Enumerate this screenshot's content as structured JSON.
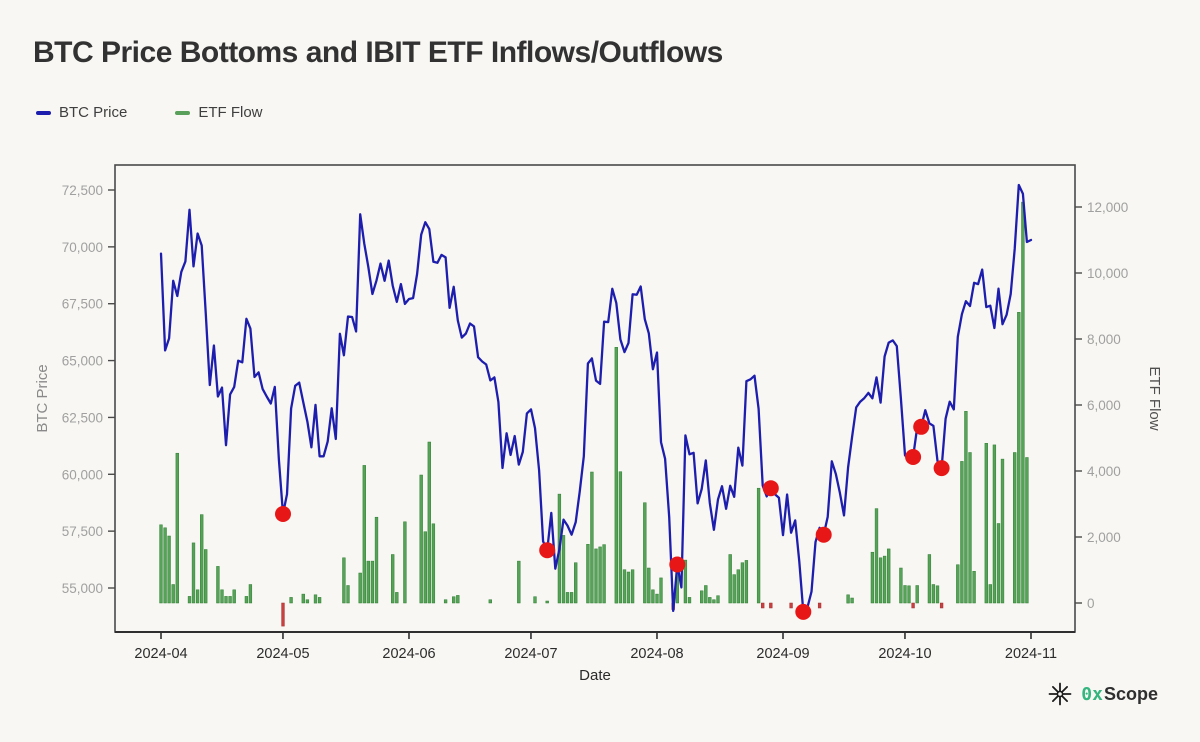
{
  "page": {
    "background": "#f8f7f3"
  },
  "header": {
    "title": "BTC Price Bottoms and IBIT ETF Inflows/Outflows"
  },
  "legend": {
    "items": [
      {
        "label": "BTC Price",
        "color": "#1e1eae"
      },
      {
        "label": "ETF Flow",
        "color": "#5aa05a"
      }
    ]
  },
  "footer": {
    "brand_prefix": "0x",
    "brand_suffix": "Scope",
    "prefix_color": "#35b57f",
    "icon": "eight-point-star"
  },
  "chart_data": {
    "type": "mixed-line-bar",
    "title": "BTC Price Bottoms and IBIT ETF Inflows/Outflows",
    "x_axis": {
      "label": "Date",
      "ticks": [
        {
          "label": "2024-04",
          "date": "2024-04-01"
        },
        {
          "label": "2024-05",
          "date": "2024-05-01"
        },
        {
          "label": "2024-06",
          "date": "2024-06-01"
        },
        {
          "label": "2024-07",
          "date": "2024-07-01"
        },
        {
          "label": "2024-08",
          "date": "2024-08-01"
        },
        {
          "label": "2024-09",
          "date": "2024-09-01"
        },
        {
          "label": "2024-10",
          "date": "2024-10-01"
        },
        {
          "label": "2024-11",
          "date": "2024-11-01"
        }
      ]
    },
    "left_axis": {
      "label": "BTC Price",
      "min": 55000,
      "max": 72500,
      "ticks": [
        {
          "v": 55000,
          "label": "55,000"
        },
        {
          "v": 57500,
          "label": "57,500"
        },
        {
          "v": 60000,
          "label": "60,000"
        },
        {
          "v": 62500,
          "label": "62,500"
        },
        {
          "v": 65000,
          "label": "65,000"
        },
        {
          "v": 67500,
          "label": "67,500"
        },
        {
          "v": 70000,
          "label": "70,000"
        },
        {
          "v": 72500,
          "label": "72,500"
        }
      ]
    },
    "right_axis": {
      "label": "ETF Flow",
      "min": 0,
      "max": 12000,
      "ticks": [
        {
          "v": 0,
          "label": "0"
        },
        {
          "v": 2000,
          "label": "2,000"
        },
        {
          "v": 4000,
          "label": "4,000"
        },
        {
          "v": 6000,
          "label": "6,000"
        },
        {
          "v": 8000,
          "label": "8,000"
        },
        {
          "v": 10000,
          "label": "10,000"
        },
        {
          "v": 12000,
          "label": "12,000"
        }
      ]
    },
    "series": [
      {
        "name": "BTC Price",
        "type": "line",
        "color": "#1e1eae",
        "start_date": "2024-04-01",
        "interval_days": 1,
        "values": [
          69702,
          65446,
          65980,
          68508,
          67837,
          68897,
          69362,
          71631,
          69140,
          70587,
          70060,
          67116,
          63924,
          65661,
          63419,
          63811,
          61277,
          63512,
          63843,
          64994,
          64926,
          66837,
          66407,
          64276,
          64481,
          63755,
          63419,
          63113,
          63841,
          60636,
          58254,
          59123,
          62889,
          63892,
          64031,
          63161,
          62312,
          61187,
          63049,
          60792,
          60793,
          61448,
          62901,
          61552,
          66175,
          65231,
          66940,
          66915,
          66278,
          71430,
          70136,
          69122,
          67929,
          68526,
          69265,
          68507,
          69394,
          68296,
          67578,
          68364,
          67491,
          67706,
          67745,
          68805,
          70537,
          71082,
          70780,
          69344,
          69300,
          69648,
          69536,
          67317,
          68243,
          66766,
          66011,
          66191,
          66632,
          66503,
          65147,
          64960,
          64829,
          64126,
          64261,
          63180,
          60277,
          61804,
          60854,
          61684,
          60427,
          60986,
          62678,
          62851,
          62029,
          60174,
          57050,
          56662,
          58303,
          55849,
          56705,
          58009,
          57742,
          57344,
          57899,
          59231,
          60787,
          64870,
          65097,
          64118,
          63974,
          66710,
          66690,
          68154,
          67532,
          65928,
          65372,
          65777,
          67912,
          67896,
          68255,
          66819,
          66201,
          64619,
          65357,
          61415,
          60680,
          58116,
          53991,
          56034,
          55027,
          61710,
          60880,
          60945,
          58719,
          59354,
          60609,
          58737,
          57560,
          58894,
          59478,
          58483,
          59493,
          59012,
          61175,
          60382,
          64094,
          64178,
          64333,
          62880,
          59504,
          59027,
          59388,
          59119,
          58969,
          57325,
          59112,
          57431,
          57971,
          56160,
          53948,
          54139,
          54841,
          57019,
          57648,
          57343,
          58127,
          60571,
          60005,
          59182,
          58192,
          60308,
          61649,
          62940,
          63193,
          63348,
          63579,
          63339,
          64262,
          63150,
          65181,
          65790,
          65887,
          65635,
          63329,
          60837,
          60632,
          60759,
          62067,
          62089,
          62818,
          62236,
          62131,
          60582,
          60274,
          62445,
          63193,
          62851,
          66046,
          67041,
          67612,
          67399,
          68418,
          68362,
          69001,
          67353,
          67411,
          66432,
          68161,
          66600,
          67014,
          67929,
          69907,
          72720,
          72339,
          70215,
          70300
        ]
      },
      {
        "name": "ETF Flow",
        "type": "bar",
        "color_positive": "#55a356",
        "color_negative": "#c94040",
        "points": [
          [
            "2024-04-01",
            2370
          ],
          [
            "2024-04-02",
            2280
          ],
          [
            "2024-04-03",
            2030
          ],
          [
            "2024-04-04",
            560
          ],
          [
            "2024-04-05",
            4540
          ],
          [
            "2024-04-08",
            200
          ],
          [
            "2024-04-09",
            1820
          ],
          [
            "2024-04-10",
            400
          ],
          [
            "2024-04-11",
            2680
          ],
          [
            "2024-04-12",
            1620
          ],
          [
            "2024-04-15",
            1110
          ],
          [
            "2024-04-16",
            400
          ],
          [
            "2024-04-17",
            200
          ],
          [
            "2024-04-18",
            200
          ],
          [
            "2024-04-19",
            400
          ],
          [
            "2024-04-22",
            200
          ],
          [
            "2024-04-23",
            560
          ],
          [
            "2024-05-01",
            -700
          ],
          [
            "2024-05-03",
            170
          ],
          [
            "2024-05-06",
            270
          ],
          [
            "2024-05-07",
            100
          ],
          [
            "2024-05-09",
            250
          ],
          [
            "2024-05-10",
            170
          ],
          [
            "2024-05-16",
            1370
          ],
          [
            "2024-05-17",
            530
          ],
          [
            "2024-05-20",
            910
          ],
          [
            "2024-05-21",
            4170
          ],
          [
            "2024-05-22",
            1270
          ],
          [
            "2024-05-23",
            1270
          ],
          [
            "2024-05-24",
            2600
          ],
          [
            "2024-05-28",
            1470
          ],
          [
            "2024-05-29",
            320
          ],
          [
            "2024-05-31",
            2460
          ],
          [
            "2024-06-04",
            3880
          ],
          [
            "2024-06-05",
            2160
          ],
          [
            "2024-06-06",
            4880
          ],
          [
            "2024-06-07",
            2400
          ],
          [
            "2024-06-10",
            100
          ],
          [
            "2024-06-12",
            190
          ],
          [
            "2024-06-13",
            230
          ],
          [
            "2024-06-21",
            100
          ],
          [
            "2024-06-28",
            1270
          ],
          [
            "2024-07-02",
            190
          ],
          [
            "2024-07-05",
            60
          ],
          [
            "2024-07-08",
            3300
          ],
          [
            "2024-07-09",
            2050
          ],
          [
            "2024-07-10",
            320
          ],
          [
            "2024-07-11",
            320
          ],
          [
            "2024-07-12",
            1220
          ],
          [
            "2024-07-15",
            1780
          ],
          [
            "2024-07-16",
            3970
          ],
          [
            "2024-07-17",
            1640
          ],
          [
            "2024-07-18",
            1700
          ],
          [
            "2024-07-19",
            1770
          ],
          [
            "2024-07-22",
            7750
          ],
          [
            "2024-07-23",
            3980
          ],
          [
            "2024-07-24",
            1010
          ],
          [
            "2024-07-25",
            940
          ],
          [
            "2024-07-26",
            1010
          ],
          [
            "2024-07-29",
            3040
          ],
          [
            "2024-07-30",
            1060
          ],
          [
            "2024-07-31",
            400
          ],
          [
            "2024-08-01",
            270
          ],
          [
            "2024-08-02",
            760
          ],
          [
            "2024-08-05",
            -200
          ],
          [
            "2024-08-06",
            1340
          ],
          [
            "2024-08-08",
            1300
          ],
          [
            "2024-08-09",
            170
          ],
          [
            "2024-08-12",
            370
          ],
          [
            "2024-08-13",
            530
          ],
          [
            "2024-08-14",
            170
          ],
          [
            "2024-08-15",
            100
          ],
          [
            "2024-08-16",
            220
          ],
          [
            "2024-08-19",
            1470
          ],
          [
            "2024-08-20",
            860
          ],
          [
            "2024-08-21",
            1010
          ],
          [
            "2024-08-22",
            1220
          ],
          [
            "2024-08-23",
            1290
          ],
          [
            "2024-08-26",
            3480
          ],
          [
            "2024-08-27",
            -150
          ],
          [
            "2024-08-29",
            -150
          ],
          [
            "2024-09-03",
            -150
          ],
          [
            "2024-09-10",
            -150
          ],
          [
            "2024-09-17",
            250
          ],
          [
            "2024-09-18",
            150
          ],
          [
            "2024-09-23",
            1540
          ],
          [
            "2024-09-24",
            2860
          ],
          [
            "2024-09-25",
            1370
          ],
          [
            "2024-09-26",
            1420
          ],
          [
            "2024-09-27",
            1640
          ],
          [
            "2024-09-30",
            1060
          ],
          [
            "2024-10-01",
            530
          ],
          [
            "2024-10-02",
            520
          ],
          [
            "2024-10-03",
            -150
          ],
          [
            "2024-10-04",
            530
          ],
          [
            "2024-10-07",
            1470
          ],
          [
            "2024-10-08",
            560
          ],
          [
            "2024-10-09",
            520
          ],
          [
            "2024-10-10",
            -150
          ],
          [
            "2024-10-14",
            1160
          ],
          [
            "2024-10-15",
            4290
          ],
          [
            "2024-10-16",
            5810
          ],
          [
            "2024-10-17",
            4560
          ],
          [
            "2024-10-18",
            960
          ],
          [
            "2024-10-21",
            4840
          ],
          [
            "2024-10-22",
            560
          ],
          [
            "2024-10-23",
            4790
          ],
          [
            "2024-10-24",
            2410
          ],
          [
            "2024-10-25",
            4360
          ],
          [
            "2024-10-28",
            4560
          ],
          [
            "2024-10-29",
            8810
          ],
          [
            "2024-10-30",
            12150
          ],
          [
            "2024-10-31",
            4410
          ]
        ]
      }
    ],
    "annotations": {
      "bottom_markers": {
        "name": "BTC price bottoms",
        "color": "#e81717",
        "points": [
          [
            "2024-05-01",
            58254
          ],
          [
            "2024-07-05",
            56662
          ],
          [
            "2024-08-06",
            56034
          ],
          [
            "2024-08-29",
            59388
          ],
          [
            "2024-09-06",
            53948
          ],
          [
            "2024-09-11",
            57343
          ],
          [
            "2024-10-03",
            60759
          ],
          [
            "2024-10-05",
            62089
          ],
          [
            "2024-10-10",
            60274
          ]
        ]
      }
    },
    "layout_hints": {
      "grid": false,
      "legend_position": "top-left",
      "frame": "box"
    }
  }
}
